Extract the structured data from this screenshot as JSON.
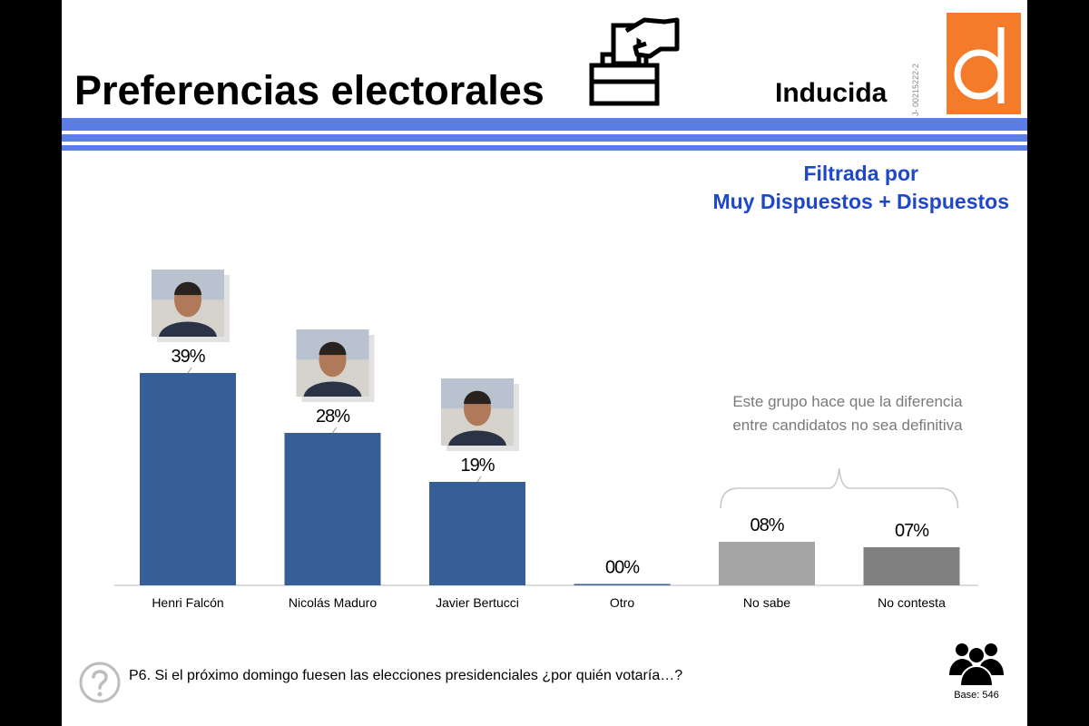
{
  "header": {
    "title": "Preferencias electorales",
    "mode": "Inducida",
    "doc_id": "J- 00215222-2",
    "logo_letter": "d",
    "ballot_icon": "ballot-box-icon"
  },
  "filter": {
    "line1": "Filtrada por",
    "line2": "Muy Dispuestos  + Dispuestos"
  },
  "annotation": {
    "line1": "Este grupo hace que la diferencia",
    "line2": "entre candidatos no sea definitiva"
  },
  "footer": {
    "question": "P6. Si el próximo domingo fuesen las elecciones presidenciales ¿por quién votaría…?",
    "base": "Base: 546",
    "question_icon": "question-icon",
    "people_icon": "people-icon"
  },
  "colors": {
    "accent_blue": "#1f47c9",
    "stripe_blue": "#5b7ee6",
    "bar_candidate": "#355f96",
    "bar_no_sabe": "#a6a6a6",
    "bar_no_contesta": "#808080",
    "logo_orange": "#f47b2a"
  },
  "chart_data": {
    "type": "bar",
    "categories": [
      "Henri Falcón",
      "Nicolás Maduro",
      "Javier Bertucci",
      "Otro",
      "No sabe",
      "No contesta"
    ],
    "values": [
      39,
      28,
      19,
      0,
      8,
      7
    ],
    "labels": [
      "39%",
      "28%",
      "19%",
      "00%",
      "08%",
      "07%"
    ],
    "bar_colors": [
      "#355f96",
      "#355f96",
      "#355f96",
      "#355f96",
      "#a6a6a6",
      "#808080"
    ],
    "photos": [
      true,
      true,
      true,
      false,
      false,
      false
    ],
    "ylim": [
      0,
      50
    ]
  }
}
